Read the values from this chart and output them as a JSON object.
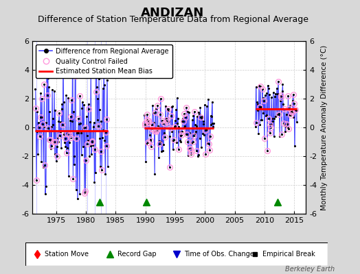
{
  "title": "ANDIZAN",
  "subtitle": "Difference of Station Temperature Data from Regional Average",
  "ylabel": "Monthly Temperature Anomaly Difference (°C)",
  "xlim": [
    1971.0,
    2017.0
  ],
  "ylim": [
    -6.0,
    6.0
  ],
  "yticks": [
    -6,
    -4,
    -2,
    0,
    2,
    4,
    6
  ],
  "xticks": [
    1975,
    1980,
    1985,
    1990,
    1995,
    2000,
    2005,
    2010,
    2015
  ],
  "background_color": "#d8d8d8",
  "plot_bg_color": "#ffffff",
  "grid_color": "#cccccc",
  "title_fontsize": 13,
  "subtitle_fontsize": 9,
  "watermark": "Berkeley Earth",
  "segments": [
    {
      "x_start": 1971.5,
      "x_end": 1983.7,
      "bias": -0.25,
      "spread": 2.2,
      "seed": 10
    },
    {
      "x_start": 1989.8,
      "x_end": 2001.5,
      "bias": -0.05,
      "spread": 1.0,
      "seed": 20
    },
    {
      "x_start": 2008.5,
      "x_end": 2015.5,
      "bias": 1.3,
      "spread": 1.0,
      "seed": 30
    }
  ],
  "record_gaps": [
    1982.3,
    1990.1,
    2012.2
  ],
  "blue_line_color": "#4444ff",
  "blue_spike_color": "#8888ff",
  "qc_circle_color": "#ff99dd",
  "bias_line_color": "#ff0000",
  "green_tri_color": "#008800"
}
